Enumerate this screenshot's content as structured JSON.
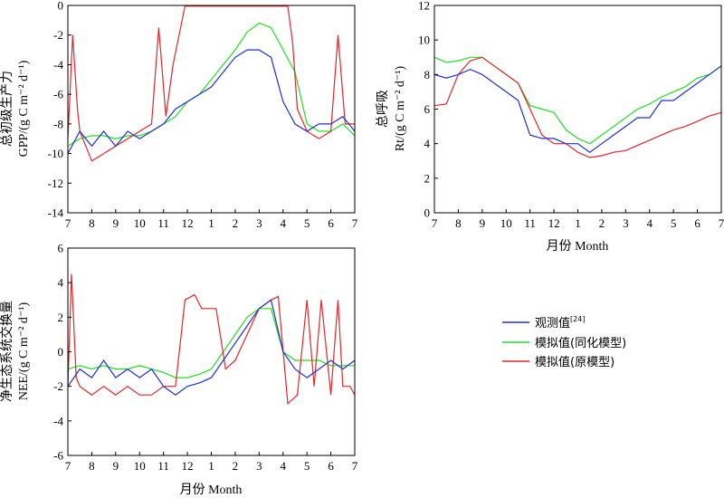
{
  "colors": {
    "observed": "#1f2fd6",
    "assimilation": "#22e022",
    "original": "#e3262b"
  },
  "legend": {
    "observed": "观测值",
    "observed_ref": "[24]",
    "assimilation": "模拟值(同化模型)",
    "original": "模拟值(原模型)"
  },
  "chart_data": [
    {
      "type": "line",
      "panel": "gpp",
      "ylabel_cn": "总初级生产力",
      "ylabel_en": "GPP/(g C m⁻² d⁻¹)",
      "xlabel": "",
      "ylim": [
        -14,
        0
      ],
      "yticks": [
        "0",
        "-2",
        "-4",
        "-6",
        "-8",
        "-10",
        "-12",
        "-14"
      ],
      "xticks": [
        "7",
        "8",
        "9",
        "10",
        "11",
        "12",
        "1",
        "2",
        "3",
        "4",
        "5",
        "6",
        "7"
      ],
      "series": [
        {
          "key": "observed",
          "x": [
            0,
            0.5,
            1,
            1.5,
            2,
            2.5,
            3,
            3.5,
            4,
            4.5,
            5,
            5.5,
            6,
            6.5,
            7,
            7.5,
            8,
            8.5,
            9,
            9.5,
            10,
            10.5,
            11,
            11.5,
            12
          ],
          "values": [
            -10,
            -8.5,
            -9.5,
            -8.5,
            -9.5,
            -8.5,
            -9,
            -8.5,
            -8,
            -7,
            -6.5,
            -6,
            -5.5,
            -4.5,
            -3.5,
            -3,
            -3,
            -3.5,
            -6.5,
            -8,
            -8.5,
            -8,
            -8,
            -7.5,
            -8.5
          ]
        },
        {
          "key": "assimilation",
          "x": [
            0,
            0.5,
            1,
            1.5,
            2,
            2.5,
            3,
            3.5,
            4,
            4.5,
            5,
            5.5,
            6,
            6.5,
            7,
            7.5,
            8,
            8.5,
            9,
            9.5,
            10,
            10.5,
            11,
            11.5,
            12
          ],
          "values": [
            -9.5,
            -9,
            -8.8,
            -8.8,
            -9,
            -8.8,
            -8.8,
            -8.5,
            -8,
            -7.5,
            -6.5,
            -6,
            -5,
            -4,
            -3,
            -1.8,
            -1.2,
            -1.5,
            -3,
            -4.5,
            -8,
            -8.5,
            -8.5,
            -8,
            -8.8
          ]
        },
        {
          "key": "original",
          "x": [
            0,
            0.2,
            0.4,
            0.5,
            1,
            1.5,
            2,
            2.5,
            3,
            3.5,
            3.8,
            4.1,
            4.4,
            4.9,
            5.2,
            6,
            7,
            8,
            8.5,
            9.2,
            9.4,
            9.6,
            10,
            10.5,
            11,
            11.3,
            11.6,
            12
          ],
          "values": [
            -9,
            -2,
            -7,
            -8.5,
            -10.5,
            -10,
            -9.5,
            -9,
            -8.5,
            -8,
            -1.5,
            -7.5,
            -4,
            -0.05,
            -0.05,
            -0.05,
            -0.05,
            -0.05,
            -0.05,
            -0.05,
            -2.5,
            -7,
            -8.5,
            -9,
            -8.5,
            -2,
            -8,
            -8
          ]
        }
      ]
    },
    {
      "type": "line",
      "panel": "rt",
      "ylabel_cn": "总呼吸",
      "ylabel_en": "Rt/(g C m⁻² d⁻¹)",
      "xlabel": "月份 Month",
      "ylim": [
        0,
        12
      ],
      "yticks": [
        "12",
        "10",
        "8",
        "6",
        "4",
        "2",
        "0"
      ],
      "xticks": [
        "7",
        "8",
        "9",
        "10",
        "11",
        "12",
        "1",
        "2",
        "3",
        "4",
        "5",
        "6",
        "7"
      ],
      "series": [
        {
          "key": "observed",
          "x": [
            0,
            0.5,
            1,
            1.5,
            2,
            2.5,
            3,
            3.5,
            4,
            4.5,
            5,
            5.5,
            6,
            6.5,
            7,
            7.5,
            8,
            8.5,
            9,
            9.5,
            10,
            10.5,
            11,
            11.5,
            12
          ],
          "values": [
            8,
            7.8,
            8,
            8.3,
            8,
            7.5,
            7,
            6.5,
            4.5,
            4.3,
            4.3,
            4,
            4,
            3.5,
            4,
            4.5,
            5,
            5.5,
            5.5,
            6.5,
            6.5,
            7,
            7.5,
            8,
            8.5
          ]
        },
        {
          "key": "assimilation",
          "x": [
            0,
            0.5,
            1,
            1.5,
            2,
            2.5,
            3,
            3.5,
            4,
            4.5,
            5,
            5.5,
            6,
            6.5,
            7,
            7.5,
            8,
            8.5,
            9,
            9.5,
            10,
            10.5,
            11,
            11.5,
            12
          ],
          "values": [
            9,
            8.7,
            8.8,
            9,
            9,
            8.5,
            8,
            7.5,
            6.2,
            6,
            5.8,
            4.8,
            4.3,
            4,
            4.5,
            5,
            5.5,
            6,
            6.3,
            6.7,
            7,
            7.3,
            7.8,
            8,
            8.5
          ]
        },
        {
          "key": "original",
          "x": [
            0,
            0.5,
            1,
            1.5,
            2,
            2.5,
            3,
            3.5,
            4,
            4.5,
            5,
            5.5,
            6,
            6.5,
            7,
            7.5,
            8,
            8.5,
            9,
            9.5,
            10,
            10.5,
            11,
            11.5,
            12
          ],
          "values": [
            6.2,
            6.3,
            8,
            8.8,
            9,
            8.5,
            8,
            7.5,
            6,
            4.5,
            4,
            4,
            3.5,
            3.2,
            3.3,
            3.5,
            3.6,
            3.9,
            4.2,
            4.5,
            4.8,
            5,
            5.3,
            5.6,
            5.8
          ]
        }
      ]
    },
    {
      "type": "line",
      "panel": "nee",
      "ylabel_cn": "净生态系统交换量",
      "ylabel_en": "NEE/(g C m⁻² d⁻¹)",
      "xlabel": "月份 Month",
      "ylim": [
        -6,
        6
      ],
      "yticks": [
        "6",
        "4",
        "2",
        "0",
        "-2",
        "-4",
        "-6"
      ],
      "xticks": [
        "7",
        "8",
        "9",
        "10",
        "11",
        "12",
        "1",
        "2",
        "3",
        "4",
        "5",
        "6",
        "7"
      ],
      "series": [
        {
          "key": "observed",
          "x": [
            0,
            0.5,
            1,
            1.5,
            2,
            2.5,
            3,
            3.5,
            4,
            4.5,
            5,
            5.5,
            6,
            6.5,
            7,
            7.5,
            8,
            8.5,
            9,
            9.5,
            10,
            10.5,
            11,
            11.5,
            12
          ],
          "values": [
            -2,
            -1,
            -1.5,
            -0.5,
            -1.5,
            -1,
            -1.5,
            -1,
            -2,
            -2.5,
            -2,
            -1.8,
            -1.5,
            -0.5,
            0.5,
            1.5,
            2.5,
            3,
            0,
            -1,
            -1.5,
            -1,
            -0.5,
            -1,
            -0.5
          ]
        },
        {
          "key": "assimilation",
          "x": [
            0,
            0.5,
            1,
            1.5,
            2,
            2.5,
            3,
            3.5,
            4,
            4.5,
            5,
            5.5,
            6,
            6.5,
            7,
            7.5,
            8,
            8.5,
            9,
            9.5,
            10,
            10.5,
            11,
            11.5,
            12
          ],
          "values": [
            -1,
            -0.8,
            -1,
            -0.8,
            -1,
            -1,
            -0.8,
            -1,
            -1.2,
            -1.5,
            -1.5,
            -1.3,
            -1,
            0,
            1,
            2,
            2.5,
            2.5,
            0,
            -0.5,
            -0.5,
            -0.5,
            -0.8,
            -0.8,
            -0.8
          ]
        },
        {
          "key": "original",
          "x": [
            0,
            0.15,
            0.35,
            0.5,
            1,
            1.5,
            2,
            2.5,
            3,
            3.5,
            4,
            4.5,
            4.9,
            5.3,
            5.6,
            5.9,
            6.2,
            6.6,
            7,
            7.5,
            8,
            8.5,
            8.8,
            9.2,
            9.6,
            10,
            10.3,
            10.6,
            11,
            11.3,
            11.5,
            11.8,
            12
          ],
          "values": [
            -2,
            4.5,
            -1.5,
            -2,
            -2.5,
            -2,
            -2.5,
            -2,
            -2.5,
            -2.5,
            -2,
            -2,
            3,
            3.3,
            2.5,
            2.5,
            2.5,
            -1,
            -0.5,
            1,
            2.5,
            3,
            3.2,
            -3,
            -2.5,
            3,
            -2,
            3,
            -2.5,
            3,
            -2,
            -2,
            -2.5
          ]
        }
      ]
    }
  ]
}
